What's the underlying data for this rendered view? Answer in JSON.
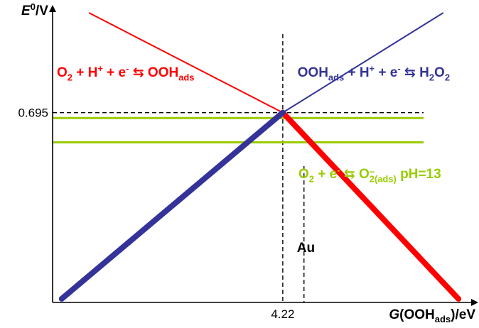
{
  "chart_data": {
    "type": "line",
    "title": "",
    "axes": {
      "y_label": {
        "main": "E",
        "sup": "0",
        "rest": "/V"
      },
      "x_label": {
        "main": "G",
        "open": "(OOH",
        "sub": "ads",
        "close": ")/eV"
      },
      "x_ticks": [
        {
          "value": 4.22,
          "label": "4.22"
        }
      ],
      "y_ticks": [
        {
          "value": 0.695,
          "label": "0.695"
        }
      ],
      "xlim": [
        2.7,
        5.45
      ],
      "ylim": [
        -0.36,
        1.25
      ],
      "grid": false
    },
    "series": [
      {
        "key": "red",
        "color": "#ff0000",
        "label_parts": [
          {
            "t": "O"
          },
          {
            "t": "2",
            "s": "sub"
          },
          {
            "t": " + H"
          },
          {
            "t": "+",
            "s": "sup"
          },
          {
            "t": " + e"
          },
          {
            "t": "-",
            "s": "sup"
          },
          {
            "t": " ⇆ OOH"
          },
          {
            "t": "ads",
            "s": "sub"
          }
        ],
        "points": [
          [
            2.94,
            1.25
          ],
          [
            4.22,
            0.695
          ],
          [
            5.38,
            -0.34
          ]
        ],
        "thick_from": 4.22
      },
      {
        "key": "blue",
        "color": "#333399",
        "label_parts": [
          {
            "t": "OOH"
          },
          {
            "t": "ads",
            "s": "sub"
          },
          {
            "t": " + H"
          },
          {
            "t": "+",
            "s": "sup"
          },
          {
            "t": " + e"
          },
          {
            "t": "-",
            "s": "sup"
          },
          {
            "t": " ⇆ H"
          },
          {
            "t": "2",
            "s": "sub"
          },
          {
            "t": "O"
          },
          {
            "t": "2",
            "s": "sub"
          }
        ],
        "points": [
          [
            2.76,
            -0.34
          ],
          [
            4.22,
            0.695
          ],
          [
            5.28,
            1.25
          ]
        ],
        "thick_to": 4.22
      }
    ],
    "horizontal_lines": [
      {
        "color": "#99cc00",
        "y": 0.665
      },
      {
        "color": "#99cc00",
        "y": 0.53
      }
    ],
    "green_label_parts": [
      {
        "t": "O"
      },
      {
        "t": "2",
        "s": "sub"
      },
      {
        "t": " + e"
      },
      {
        "t": "-",
        "s": "sup"
      },
      {
        "t": " ⇆ O"
      },
      {
        "t": "2(ads)",
        "s": "sub",
        "over": "−"
      },
      {
        "t": " pH=13"
      }
    ],
    "reference_lines": [
      {
        "kind": "vertical",
        "x": 4.22
      },
      {
        "kind": "horizontal",
        "y": 0.695
      },
      {
        "kind": "vertical",
        "x": 4.36,
        "label": "Au"
      }
    ]
  }
}
